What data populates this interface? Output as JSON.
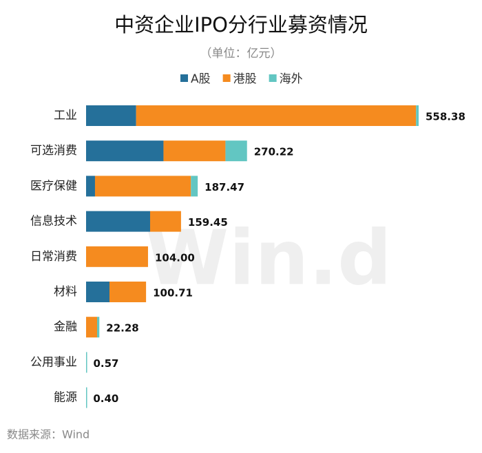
{
  "chart_data": {
    "type": "stacked-bar-horizontal",
    "title": "中资企业IPO分行业募资情况",
    "subtitle": "（单位：亿元）",
    "categories": [
      "工业",
      "可选消费",
      "医疗保健",
      "信息技术",
      "日常消费",
      "材料",
      "金融",
      "公用事业",
      "能源"
    ],
    "series": [
      {
        "name": "A股",
        "color": "#25709a",
        "values": [
          84,
          130,
          15,
          107.5,
          0,
          39.3,
          0,
          0,
          0
        ]
      },
      {
        "name": "港股",
        "color": "#f58b1f",
        "values": [
          470,
          104,
          161,
          51.95,
          104,
          61.41,
          18.5,
          0,
          0
        ]
      },
      {
        "name": "海外",
        "color": "#62c6c2",
        "values": [
          4.38,
          36.22,
          11.47,
          0,
          0,
          0,
          3.78,
          0.57,
          0.4
        ]
      }
    ],
    "totals": [
      558.38,
      270.22,
      187.47,
      159.45,
      104.0,
      100.71,
      22.28,
      0.57,
      0.4
    ],
    "value_labels": [
      "558.38",
      "270.22",
      "187.47",
      "159.45",
      "104.00",
      "100.71",
      "22.28",
      "0.57",
      "0.40"
    ],
    "watermark": "Win.d",
    "source": "数据来源：Wind"
  }
}
